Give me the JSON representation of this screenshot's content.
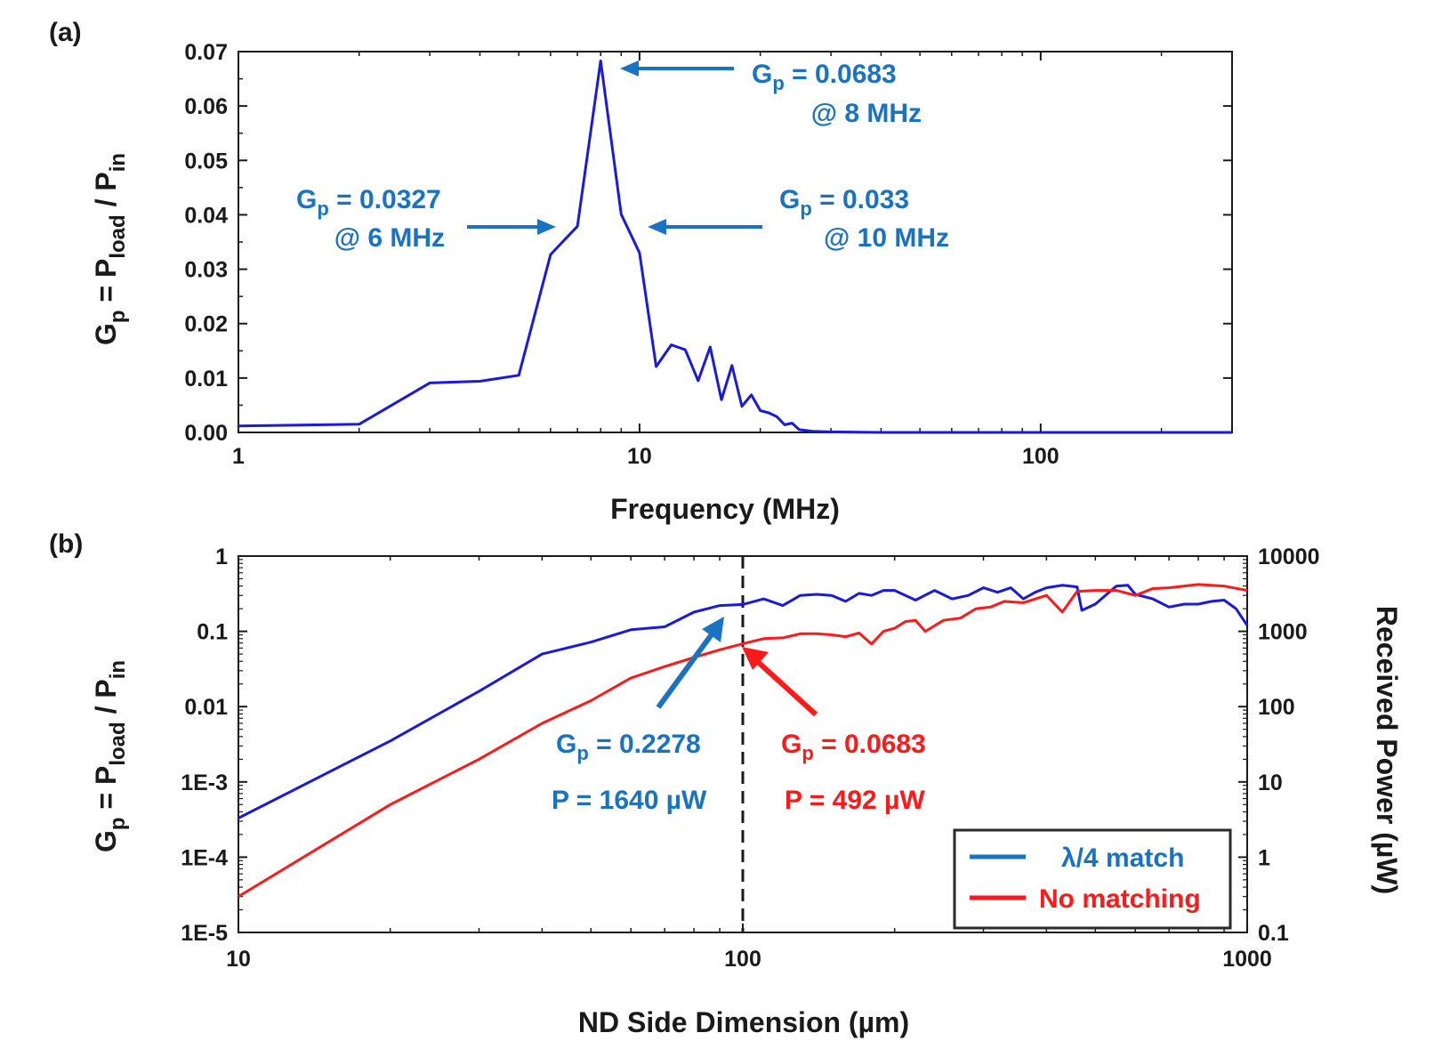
{
  "chart_data": [
    {
      "panel": "(a)",
      "type": "line",
      "xlabel": "Frequency (MHz)",
      "ylabel": {
        "base": "G",
        "base_sub": "p",
        "mid": " = P",
        "sub1": "load",
        "mid2": " / P",
        "sub2": "in"
      },
      "xscale": "log",
      "xlim": [
        1,
        300
      ],
      "ylim": [
        0,
        0.07
      ],
      "xticks": [
        1,
        10,
        100
      ],
      "xtick_labels": [
        "1",
        "10",
        "100"
      ],
      "yticks": [
        0,
        0.01,
        0.02,
        0.03,
        0.04,
        0.05,
        0.06,
        0.07
      ],
      "ytick_labels": [
        "0.00",
        "0.01",
        "0.02",
        "0.03",
        "0.04",
        "0.05",
        "0.06",
        "0.07"
      ],
      "series": [
        {
          "color": "#1a1adb",
          "points": [
            [
              1,
              0.0012
            ],
            [
              2,
              0.0015
            ],
            [
              3,
              0.0091
            ],
            [
              4,
              0.0094
            ],
            [
              5,
              0.0105
            ],
            [
              6,
              0.0327
            ],
            [
              7,
              0.0379
            ],
            [
              8,
              0.0683
            ],
            [
              9,
              0.0401
            ],
            [
              10,
              0.033
            ],
            [
              11,
              0.0121
            ],
            [
              12,
              0.0161
            ],
            [
              13,
              0.0152
            ],
            [
              14,
              0.0095
            ],
            [
              15,
              0.0157
            ],
            [
              16,
              0.006
            ],
            [
              17,
              0.0123
            ],
            [
              18,
              0.0048
            ],
            [
              19,
              0.0069
            ],
            [
              20,
              0.004
            ],
            [
              21,
              0.0036
            ],
            [
              22,
              0.0029
            ],
            [
              23,
              0.0014
            ],
            [
              24,
              0.0017
            ],
            [
              25,
              0.0005
            ],
            [
              27,
              0.0002
            ],
            [
              30,
              0.0001
            ],
            [
              40,
              0
            ],
            [
              60,
              0
            ],
            [
              100,
              0
            ],
            [
              150,
              0
            ],
            [
              200,
              0
            ],
            [
              300,
              0
            ]
          ]
        }
      ],
      "annotations": [
        {
          "line1_base": "G",
          "line1_sub": "p",
          "line1_rest": " = 0.0683",
          "line2": "@ 8 MHz",
          "color": "#1a73c2"
        },
        {
          "line1_base": "G",
          "line1_sub": "p",
          "line1_rest": " = 0.0327",
          "line2": "@ 6 MHz",
          "color": "#1a73c2"
        },
        {
          "line1_base": "G",
          "line1_sub": "p",
          "line1_rest": " = 0.033",
          "line2": "@ 10 MHz",
          "color": "#1a73c2"
        }
      ]
    },
    {
      "panel": "(b)",
      "type": "line",
      "xlabel": "ND Side Dimension (µm)",
      "ylabel": {
        "base": "G",
        "base_sub": "p",
        "mid": " = P",
        "sub1": "load",
        "mid2": " / P",
        "sub2": "in"
      },
      "y2label": "Received Power (µW)",
      "xscale": "log",
      "yscale": "log",
      "y2scale": "log",
      "xlim": [
        10,
        1000
      ],
      "ylim": [
        1e-05,
        1
      ],
      "y2lim": [
        0.1,
        10000
      ],
      "xticks": [
        10,
        100,
        1000
      ],
      "xtick_labels": [
        "10",
        "100",
        "1000"
      ],
      "yticks": [
        1e-05,
        0.0001,
        0.001,
        0.01,
        0.1,
        1
      ],
      "ytick_labels": [
        "1E-5",
        "1E-4",
        "1E-3",
        "0.01",
        "0.1",
        "1"
      ],
      "y2ticks": [
        0.1,
        1,
        10,
        100,
        1000,
        10000
      ],
      "y2tick_labels": [
        "0.1",
        "1",
        "10",
        "100",
        "1000",
        "10000"
      ],
      "vline_x": 100,
      "legend": {
        "position": "bottom-right",
        "entries": [
          "λ/4 match",
          "No matching"
        ]
      },
      "series": [
        {
          "name": "λ/4 match",
          "color": "#1a1adb",
          "points": [
            [
              10,
              0.00033
            ],
            [
              20,
              0.0035
            ],
            [
              30,
              0.016
            ],
            [
              40,
              0.05
            ],
            [
              50,
              0.072
            ],
            [
              60,
              0.105
            ],
            [
              70,
              0.115
            ],
            [
              80,
              0.18
            ],
            [
              90,
              0.22
            ],
            [
              100,
              0.2278
            ],
            [
              110,
              0.27
            ],
            [
              120,
              0.22
            ],
            [
              130,
              0.3
            ],
            [
              140,
              0.31
            ],
            [
              150,
              0.3
            ],
            [
              160,
              0.25
            ],
            [
              170,
              0.32
            ],
            [
              180,
              0.3
            ],
            [
              190,
              0.35
            ],
            [
              200,
              0.35
            ],
            [
              220,
              0.26
            ],
            [
              240,
              0.35
            ],
            [
              260,
              0.27
            ],
            [
              280,
              0.3
            ],
            [
              300,
              0.38
            ],
            [
              320,
              0.33
            ],
            [
              340,
              0.38
            ],
            [
              360,
              0.27
            ],
            [
              380,
              0.33
            ],
            [
              400,
              0.38
            ],
            [
              430,
              0.41
            ],
            [
              460,
              0.39
            ],
            [
              470,
              0.19
            ],
            [
              500,
              0.23
            ],
            [
              550,
              0.4
            ],
            [
              580,
              0.41
            ],
            [
              600,
              0.31
            ],
            [
              650,
              0.27
            ],
            [
              700,
              0.21
            ],
            [
              750,
              0.23
            ],
            [
              800,
              0.23
            ],
            [
              850,
              0.25
            ],
            [
              900,
              0.26
            ],
            [
              950,
              0.2
            ],
            [
              1000,
              0.12
            ]
          ]
        },
        {
          "name": "No matching",
          "color": "#ff1a1a",
          "points": [
            [
              10,
              3e-05
            ],
            [
              20,
              0.0005
            ],
            [
              30,
              0.002
            ],
            [
              40,
              0.006
            ],
            [
              50,
              0.012
            ],
            [
              60,
              0.024
            ],
            [
              70,
              0.034
            ],
            [
              80,
              0.045
            ],
            [
              90,
              0.057
            ],
            [
              100,
              0.0683
            ],
            [
              110,
              0.08
            ],
            [
              120,
              0.082
            ],
            [
              130,
              0.093
            ],
            [
              140,
              0.093
            ],
            [
              150,
              0.09
            ],
            [
              160,
              0.085
            ],
            [
              170,
              0.095
            ],
            [
              180,
              0.068
            ],
            [
              190,
              0.1
            ],
            [
              200,
              0.11
            ],
            [
              210,
              0.135
            ],
            [
              220,
              0.14
            ],
            [
              230,
              0.1
            ],
            [
              250,
              0.14
            ],
            [
              270,
              0.15
            ],
            [
              290,
              0.2
            ],
            [
              310,
              0.21
            ],
            [
              330,
              0.25
            ],
            [
              360,
              0.24
            ],
            [
              400,
              0.3
            ],
            [
              430,
              0.18
            ],
            [
              460,
              0.34
            ],
            [
              500,
              0.35
            ],
            [
              550,
              0.35
            ],
            [
              600,
              0.3
            ],
            [
              650,
              0.37
            ],
            [
              700,
              0.38
            ],
            [
              800,
              0.42
            ],
            [
              900,
              0.4
            ],
            [
              1000,
              0.35
            ]
          ]
        }
      ],
      "annotations": [
        {
          "line1_base": "G",
          "line1_sub": "p",
          "line1_rest": " = 0.2278",
          "line2": "P = 1640 µW",
          "color": "#1a73c2"
        },
        {
          "line1_base": "G",
          "line1_sub": "p",
          "line1_rest": " = 0.0683",
          "line2": "P = 492 µW",
          "color": "#ff1a1a"
        }
      ]
    }
  ]
}
